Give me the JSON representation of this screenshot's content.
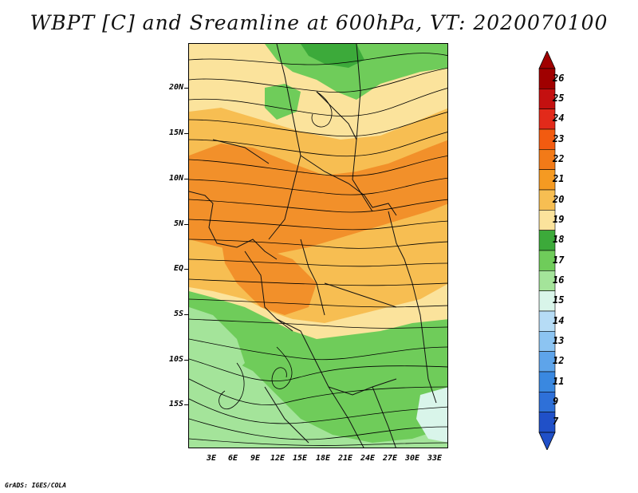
{
  "title": "WBPT [C] and Sreamline at 600hPa, VT: 2020070100",
  "credit": "GrADS: IGES/COLA",
  "lat_labels": [
    "20N",
    "15N",
    "10N",
    "5N",
    "EQ",
    "5S",
    "10S",
    "15S"
  ],
  "lon_labels": [
    "3E",
    "6E",
    "9E",
    "12E",
    "15E",
    "18E",
    "21E",
    "24E",
    "27E",
    "30E",
    "33E"
  ],
  "colorbar": {
    "levels": [
      "26",
      "25",
      "24",
      "23",
      "22",
      "21",
      "20",
      "19",
      "18",
      "17",
      "16",
      "15",
      "14",
      "13",
      "12",
      "11",
      "9",
      "7"
    ],
    "colors": [
      "#a00000",
      "#c41010",
      "#e22a1a",
      "#f25b10",
      "#f27a18",
      "#f59a22",
      "#f7be52",
      "#fbe39c",
      "#3caa3a",
      "#6fcc5a",
      "#a4e49a",
      "#d9f5ea",
      "#b6dcf6",
      "#8cc4f2",
      "#5ea4ea",
      "#3a88e0",
      "#2e70d8",
      "#2050c8"
    ]
  },
  "map": {
    "field_colors": {
      "orange_dark": "#f2902a",
      "orange": "#f7be52",
      "cream": "#fbe39c",
      "green_dark": "#3caa3a",
      "green": "#6fcc5a",
      "green_light": "#a4e49a",
      "pale_blue": "#d9f5ea"
    }
  }
}
